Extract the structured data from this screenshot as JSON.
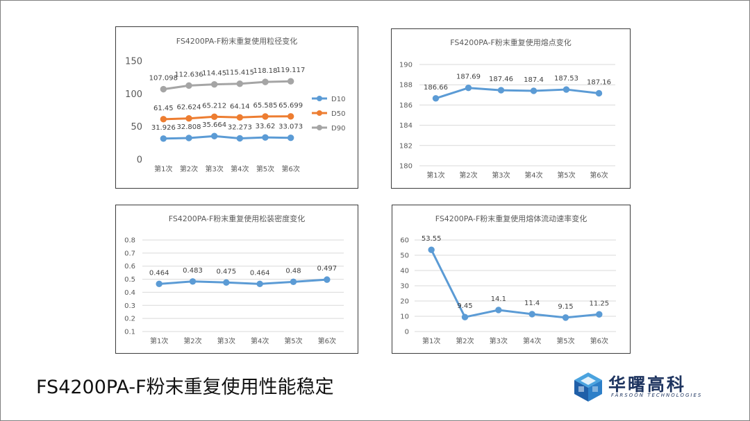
{
  "slide": {
    "title": "FS4200PA-F粉末重复使用性能稳定",
    "logo_name": "华曙高科",
    "logo_sub": "FARSOON TECHNOLOGIES",
    "logo_icon": "farsoon-cube-logo"
  },
  "colors": {
    "blue": "#5b9bd5",
    "orange": "#ed7d31",
    "gray": "#a5a5a5",
    "grid": "#d9d9d9",
    "text": "#595959"
  },
  "chart_data": [
    {
      "type": "line",
      "title": "FS4200PA-F粉末重复使用粒径变化",
      "categories": [
        "第1次",
        "第2次",
        "第3次",
        "第4次",
        "第5次",
        "第6次"
      ],
      "ylim": [
        0,
        150
      ],
      "yticks": [
        "0",
        "50",
        "100",
        "150"
      ],
      "grid": false,
      "legend": "right",
      "series": [
        {
          "name": "D10",
          "color": "#5b9bd5",
          "values": [
            31.926,
            32.808,
            35.664,
            32.273,
            33.62,
            33.073
          ],
          "labels": [
            "31.926",
            "32.808",
            "35.664",
            "32.273",
            "33.62",
            "33.073"
          ]
        },
        {
          "name": "D50",
          "color": "#ed7d31",
          "values": [
            61.45,
            62.624,
            65.212,
            64.14,
            65.585,
            65.699
          ],
          "labels": [
            "61.45",
            "62.624",
            "65.212",
            "64.14",
            "65.585",
            "65.699"
          ]
        },
        {
          "name": "D90",
          "color": "#a5a5a5",
          "values": [
            107.098,
            112.636,
            114.45,
            115.415,
            118.18,
            119.117
          ],
          "labels": [
            "107.098",
            "112.636",
            "114.45",
            "115.415",
            "118.18",
            "119.117"
          ]
        }
      ]
    },
    {
      "type": "line",
      "title": "FS4200PA-F粉末重复使用熔点变化",
      "categories": [
        "第1次",
        "第2次",
        "第3次",
        "第4次",
        "第5次",
        "第6次"
      ],
      "ylim": [
        180,
        190
      ],
      "yticks": [
        "180",
        "182",
        "184",
        "186",
        "188",
        "190"
      ],
      "grid": true,
      "series": [
        {
          "color": "#5b9bd5",
          "values": [
            186.66,
            187.69,
            187.46,
            187.4,
            187.53,
            187.16
          ],
          "labels": [
            "186.66",
            "187.69",
            "187.46",
            "187.4",
            "187.53",
            "187.16"
          ]
        }
      ]
    },
    {
      "type": "line",
      "title": "FS4200PA-F粉末重复使用松装密度变化",
      "categories": [
        "第1次",
        "第2次",
        "第3次",
        "第4次",
        "第5次",
        "第6次"
      ],
      "ylim": [
        0.1,
        0.8
      ],
      "yticks": [
        "0.1",
        "0.2",
        "0.3",
        "0.4",
        "0.5",
        "0.6",
        "0.7",
        "0.8"
      ],
      "grid": true,
      "series": [
        {
          "color": "#5b9bd5",
          "values": [
            0.464,
            0.483,
            0.475,
            0.464,
            0.48,
            0.497
          ],
          "labels": [
            "0.464",
            "0.483",
            "0.475",
            "0.464",
            "0.48",
            "0.497"
          ]
        }
      ]
    },
    {
      "type": "line",
      "title": "FS4200PA-F粉末重复使用熔体流动速率变化",
      "categories": [
        "第1次",
        "第2次",
        "第3次",
        "第4次",
        "第5次",
        "第6次"
      ],
      "ylim": [
        0,
        60
      ],
      "yticks": [
        "0",
        "10",
        "20",
        "30",
        "40",
        "50",
        "60"
      ],
      "grid": true,
      "series": [
        {
          "color": "#5b9bd5",
          "values": [
            53.55,
            9.45,
            14.1,
            11.4,
            9.15,
            11.25
          ],
          "labels": [
            "53.55",
            "9.45",
            "14.1",
            "11.4",
            "9.15",
            "11.25"
          ]
        }
      ]
    }
  ]
}
